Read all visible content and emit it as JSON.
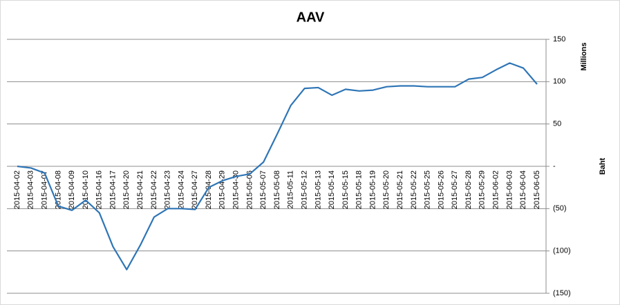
{
  "chart_data": {
    "type": "line",
    "title": "AAV",
    "y_axis_label": "Baht",
    "y_axis_unit": "Millions",
    "categories": [
      "2015-04-02",
      "2015-04-03",
      "2015-04-07",
      "2015-04-08",
      "2015-04-09",
      "2015-04-10",
      "2015-04-16",
      "2015-04-17",
      "2015-04-20",
      "2015-04-21",
      "2015-04-22",
      "2015-04-23",
      "2015-04-24",
      "2015-04-27",
      "2015-04-28",
      "2015-04-29",
      "2015-04-30",
      "2015-05-06",
      "2015-05-07",
      "2015-05-08",
      "2015-05-11",
      "2015-05-12",
      "2015-05-13",
      "2015-05-14",
      "2015-05-15",
      "2015-05-18",
      "2015-05-19",
      "2015-05-20",
      "2015-05-21",
      "2015-05-22",
      "2015-05-25",
      "2015-05-26",
      "2015-05-27",
      "2015-05-28",
      "2015-05-29",
      "2015-06-02",
      "2015-06-03",
      "2015-06-04",
      "2015-06-05"
    ],
    "values": [
      0,
      -2,
      -8,
      -47,
      -52,
      -40,
      -55,
      -95,
      -122,
      -93,
      -60,
      -50,
      -50,
      -51,
      -25,
      -17,
      -12,
      -9,
      5,
      38,
      72,
      92,
      93,
      84,
      91,
      89,
      90,
      94,
      95,
      95,
      94,
      94,
      94,
      103,
      105,
      114,
      122,
      116,
      97
    ],
    "color": "#2e75b6",
    "ylim": [
      -150,
      150
    ],
    "yticks": [
      {
        "value": 150,
        "label": "150"
      },
      {
        "value": 100,
        "label": "100"
      },
      {
        "value": 50,
        "label": "50"
      },
      {
        "value": 0,
        "label": "-"
      },
      {
        "value": -50,
        "label": "(50)"
      },
      {
        "value": -100,
        "label": "(100)"
      },
      {
        "value": -150,
        "label": "(150)"
      }
    ],
    "grid": true
  }
}
